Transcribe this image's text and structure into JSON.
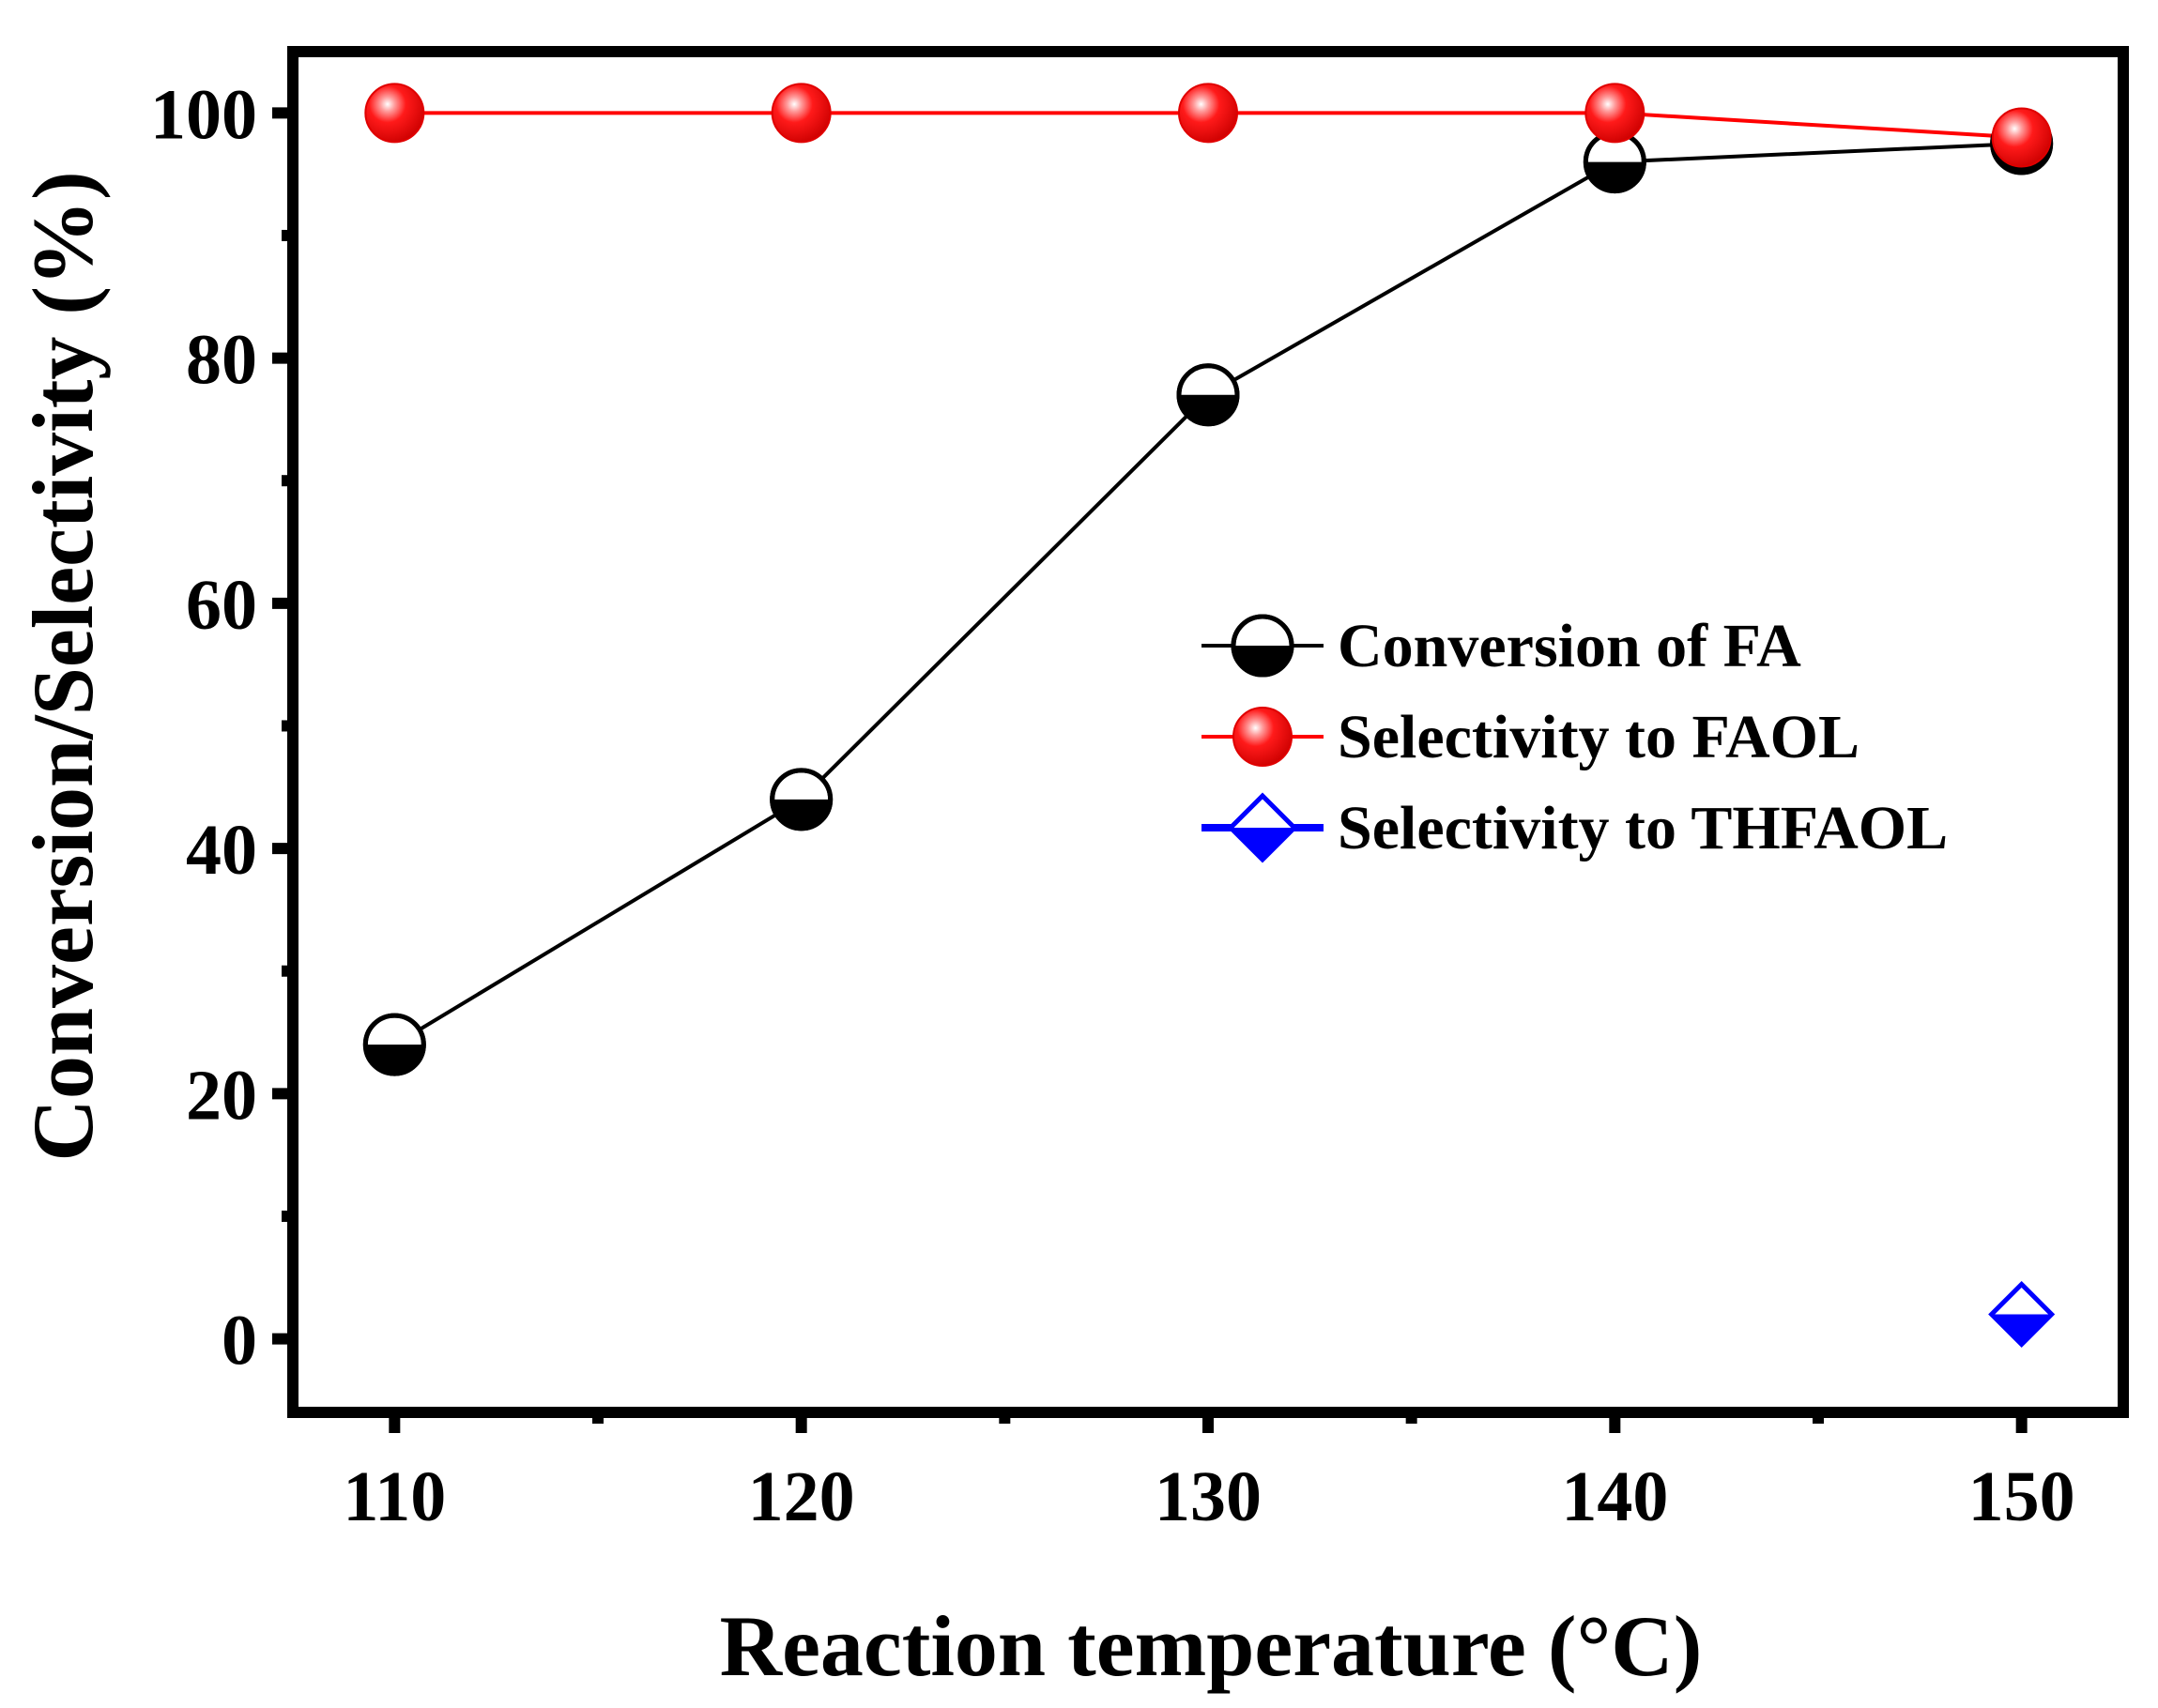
{
  "chart_data": {
    "type": "line",
    "title": "",
    "xlabel": "Reaction temperature (°C)",
    "ylabel": "Conversion/Selectivity (%)",
    "xlim": [
      107.5,
      152.5
    ],
    "ylim": [
      -6,
      105
    ],
    "xticks": [
      110,
      120,
      130,
      140,
      150
    ],
    "xticks_minor": [
      115,
      125,
      135,
      145
    ],
    "yticks": [
      0,
      20,
      40,
      60,
      80,
      100
    ],
    "yticks_minor": [
      10,
      30,
      50,
      70,
      90
    ],
    "xtick_labels": [
      "110",
      "120",
      "130",
      "140",
      "150"
    ],
    "ytick_labels": [
      "0",
      "20",
      "40",
      "60",
      "80",
      "100"
    ],
    "legend_position": "center-right",
    "grid": false,
    "series": [
      {
        "name": "Conversion of FA",
        "color": "#000000",
        "marker": "half-filled-circle",
        "x": [
          110,
          120,
          130,
          140,
          150
        ],
        "values": [
          24,
          44,
          77,
          96,
          97.5
        ]
      },
      {
        "name": "Selectivity to FAOL",
        "color": "#ff0000",
        "marker": "shaded-sphere",
        "x": [
          110,
          120,
          130,
          140,
          150
        ],
        "values": [
          100,
          100,
          100,
          100,
          98
        ]
      },
      {
        "name": "Selectivity to THFAOL",
        "color": "#0000ff",
        "marker": "half-filled-diamond",
        "x": [
          150
        ],
        "values": [
          2
        ]
      }
    ]
  }
}
